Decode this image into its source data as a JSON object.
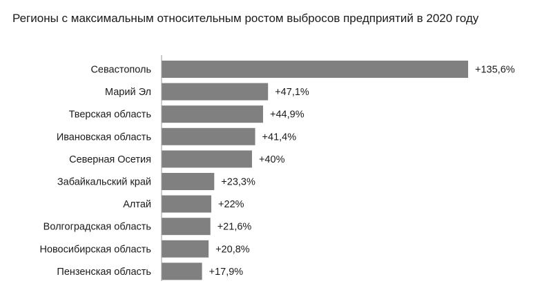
{
  "chart_data": {
    "type": "bar",
    "orientation": "horizontal",
    "title": "Регионы с максимальным относительным ростом выбросов предприятий в 2020 году",
    "categories": [
      "Севастополь",
      "Марий Эл",
      "Тверская область",
      "Ивановская область",
      "Северная Осетия",
      "Забайкальский край",
      "Алтай",
      "Волгоградская область",
      "Новосибирская область",
      "Пензенская область"
    ],
    "values": [
      135.6,
      47.1,
      44.9,
      41.4,
      40,
      23.3,
      22,
      21.6,
      20.8,
      17.9
    ],
    "value_labels": [
      "+135,6%",
      "+47,1%",
      "+44,9%",
      "+41,4%",
      "+40%",
      "+23,3%",
      "+22%",
      "+21,6%",
      "+20,8%",
      "+17,9%"
    ],
    "xlabel": "",
    "ylabel": "",
    "bar_color": "#808080",
    "axis_color": "#9a9a9a",
    "grid": false,
    "legend": false
  }
}
